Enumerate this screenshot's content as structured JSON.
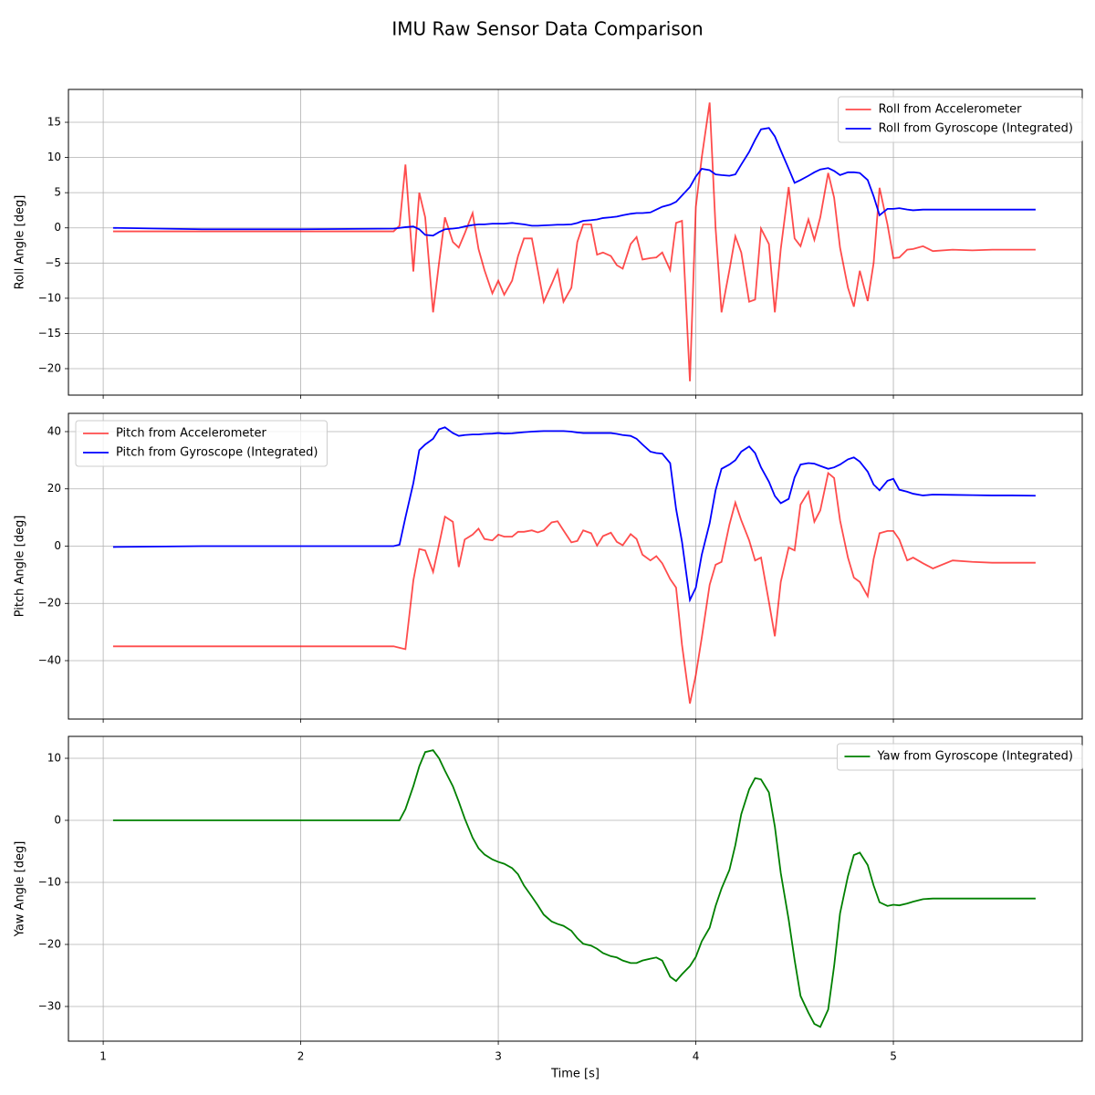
{
  "title": "IMU Raw Sensor Data Comparison",
  "chart_data": [
    {
      "type": "line",
      "ylabel": "Roll Angle [deg]",
      "legend": "upper right",
      "grid": true,
      "ylim": [
        -23.76,
        19.67
      ],
      "yticks": [
        {
          "value": -20,
          "label": "−20"
        },
        {
          "value": -15,
          "label": "−15"
        },
        {
          "value": -10,
          "label": "−10"
        },
        {
          "value": -5,
          "label": "−5"
        },
        0,
        5,
        10,
        15
      ],
      "x": [
        1.05,
        1.5,
        2.0,
        2.47,
        2.5,
        2.53,
        2.57,
        2.6,
        2.63,
        2.67,
        2.7,
        2.73,
        2.77,
        2.8,
        2.83,
        2.87,
        2.9,
        2.93,
        2.97,
        3.0,
        3.03,
        3.07,
        3.1,
        3.13,
        3.17,
        3.2,
        3.23,
        3.27,
        3.3,
        3.33,
        3.37,
        3.4,
        3.43,
        3.47,
        3.5,
        3.53,
        3.57,
        3.6,
        3.63,
        3.67,
        3.7,
        3.73,
        3.77,
        3.8,
        3.83,
        3.87,
        3.9,
        3.93,
        3.97,
        4.0,
        4.03,
        4.07,
        4.1,
        4.13,
        4.17,
        4.2,
        4.23,
        4.27,
        4.3,
        4.33,
        4.37,
        4.4,
        4.43,
        4.47,
        4.5,
        4.53,
        4.57,
        4.6,
        4.63,
        4.67,
        4.7,
        4.73,
        4.77,
        4.8,
        4.83,
        4.87,
        4.9,
        4.93,
        4.97,
        5.0,
        5.03,
        5.07,
        5.1,
        5.15,
        5.2,
        5.3,
        5.4,
        5.5,
        5.6,
        5.72
      ],
      "series": [
        {
          "name": "Roll from Accelerometer",
          "color": "#ff0000",
          "alpha": 0.7,
          "values": [
            -0.5,
            -0.5,
            -0.5,
            -0.5,
            0.3,
            9,
            -6.2,
            5,
            1.5,
            -12,
            -5,
            1.5,
            -2,
            -2.8,
            -0.8,
            2.1,
            -3,
            -6,
            -9.3,
            -7.5,
            -9.5,
            -7.5,
            -4,
            -1.5,
            -1.5,
            -6,
            -10.5,
            -8,
            -6,
            -10.5,
            -8.5,
            -2,
            0.5,
            0.5,
            -3.8,
            -3.5,
            -4,
            -5.3,
            -5.8,
            -2.3,
            -1.3,
            -4.5,
            -4.3,
            -4.2,
            -3.5,
            -6,
            0.7,
            1,
            -21.8,
            3,
            10,
            17.8,
            0,
            -12,
            -6,
            -1.2,
            -3.5,
            -10.5,
            -10.2,
            -0.1,
            -2.3,
            -12,
            -3,
            5.8,
            -1.5,
            -2.6,
            1.2,
            -1.7,
            1.5,
            7.8,
            4.3,
            -2.8,
            -8.5,
            -11.2,
            -6.1,
            -10.4,
            -5,
            5.7,
            0.5,
            -4.3,
            -4.2,
            -3.1,
            -3,
            -2.6,
            -3.3,
            -3.1,
            -3.2,
            -3.1,
            -3.1,
            -3.1
          ]
        },
        {
          "name": "Roll from Gyroscope (Integrated)",
          "color": "#0000ff",
          "alpha": 1,
          "values": [
            0,
            -0.2,
            -0.2,
            -0.1,
            0,
            0.1,
            0.2,
            -0.2,
            -1,
            -1.1,
            -0.6,
            -0.2,
            -0.1,
            0,
            0.2,
            0.4,
            0.5,
            0.5,
            0.6,
            0.6,
            0.6,
            0.7,
            0.6,
            0.5,
            0.3,
            0.3,
            0.35,
            0.4,
            0.45,
            0.45,
            0.5,
            0.7,
            1,
            1.1,
            1.2,
            1.4,
            1.5,
            1.6,
            1.8,
            2,
            2.1,
            2.1,
            2.2,
            2.6,
            3,
            3.3,
            3.7,
            4.6,
            5.8,
            7.3,
            8.4,
            8.2,
            7.6,
            7.5,
            7.4,
            7.6,
            9,
            10.8,
            12.5,
            14,
            14.2,
            13,
            11,
            8.4,
            6.4,
            6.8,
            7.4,
            7.9,
            8.3,
            8.5,
            8.1,
            7.5,
            7.9,
            7.9,
            7.8,
            6.8,
            4.5,
            1.8,
            2.7,
            2.7,
            2.8,
            2.6,
            2.5,
            2.6,
            2.6,
            2.6,
            2.6,
            2.6,
            2.6,
            2.6
          ]
        }
      ]
    },
    {
      "type": "line",
      "ylabel": "Pitch Angle [deg]",
      "legend": "upper left",
      "grid": true,
      "ylim": [
        -60.4,
        46.37
      ],
      "yticks": [
        {
          "value": -40,
          "label": "−40"
        },
        {
          "value": -20,
          "label": "−20"
        },
        0,
        20,
        40
      ],
      "x": [
        1.05,
        1.5,
        2.0,
        2.47,
        2.5,
        2.53,
        2.57,
        2.6,
        2.63,
        2.67,
        2.7,
        2.73,
        2.77,
        2.8,
        2.83,
        2.87,
        2.9,
        2.93,
        2.97,
        3.0,
        3.03,
        3.07,
        3.1,
        3.13,
        3.17,
        3.2,
        3.23,
        3.27,
        3.3,
        3.33,
        3.37,
        3.4,
        3.43,
        3.47,
        3.5,
        3.53,
        3.57,
        3.6,
        3.63,
        3.67,
        3.7,
        3.73,
        3.77,
        3.8,
        3.83,
        3.87,
        3.9,
        3.93,
        3.97,
        4.0,
        4.03,
        4.07,
        4.1,
        4.13,
        4.17,
        4.2,
        4.23,
        4.27,
        4.3,
        4.33,
        4.37,
        4.4,
        4.43,
        4.47,
        4.5,
        4.53,
        4.57,
        4.6,
        4.63,
        4.67,
        4.7,
        4.73,
        4.77,
        4.8,
        4.83,
        4.87,
        4.9,
        4.93,
        4.97,
        5.0,
        5.03,
        5.07,
        5.1,
        5.15,
        5.2,
        5.3,
        5.4,
        5.5,
        5.6,
        5.72
      ],
      "series": [
        {
          "name": "Pitch from Accelerometer",
          "color": "#ff0000",
          "alpha": 0.7,
          "values": [
            -35,
            -35,
            -35,
            -35,
            -35.5,
            -36,
            -12,
            -1,
            -1.5,
            -9,
            0.5,
            10.3,
            8.5,
            -7.3,
            2.3,
            4,
            6.1,
            2.5,
            2,
            4,
            3.3,
            3.3,
            5,
            5,
            5.5,
            4.8,
            5.5,
            8.3,
            8.7,
            5.5,
            1.3,
            1.8,
            5.5,
            4.5,
            0.2,
            3.5,
            4.7,
            1.5,
            0.3,
            4.2,
            2.5,
            -3,
            -5,
            -3.5,
            -6,
            -11.5,
            -14.5,
            -34.5,
            -55,
            -45,
            -32,
            -13.5,
            -6.5,
            -5.5,
            7.5,
            15.2,
            9,
            2,
            -5,
            -4,
            -19.5,
            -31.5,
            -12.5,
            -0.5,
            -1.5,
            14.5,
            19,
            8.5,
            12.5,
            25.5,
            23.8,
            9,
            -4,
            -11,
            -12.5,
            -17.5,
            -4.5,
            4.5,
            5.3,
            5.3,
            2.3,
            -5,
            -4,
            -6,
            -7.8,
            -5,
            -5.5,
            -5.8,
            -5.8,
            -5.8
          ]
        },
        {
          "name": "Pitch from Gyroscope (Integrated)",
          "color": "#0000ff",
          "alpha": 1,
          "values": [
            -0.3,
            0,
            0,
            0,
            0.5,
            10,
            22,
            33.5,
            35.5,
            37.5,
            40.8,
            41.5,
            39.5,
            38.5,
            38.8,
            39,
            39,
            39.2,
            39.3,
            39.5,
            39.3,
            39.4,
            39.6,
            39.8,
            40,
            40.1,
            40.2,
            40.2,
            40.2,
            40.2,
            40,
            39.7,
            39.5,
            39.5,
            39.5,
            39.5,
            39.5,
            39.2,
            38.8,
            38.5,
            37.5,
            35.5,
            33,
            32.5,
            32.3,
            29,
            13,
            1.5,
            -18.8,
            -14.5,
            -3,
            8,
            19.5,
            27,
            28.5,
            30,
            33,
            34.8,
            32.5,
            27.5,
            22.5,
            17.5,
            15,
            16.5,
            24,
            28.5,
            29,
            28.8,
            28,
            27,
            27.5,
            28.5,
            30.3,
            31,
            29.5,
            26,
            21.5,
            19.5,
            22.8,
            23.5,
            19.7,
            19,
            18.3,
            17.7,
            18,
            17.9,
            17.8,
            17.7,
            17.7,
            17.6
          ]
        }
      ]
    },
    {
      "type": "line",
      "ylabel": "Yaw Angle [deg]",
      "xlabel": "Time [s]",
      "legend": "upper right",
      "grid": true,
      "xlim": [
        0.824,
        5.956
      ],
      "xticks": [
        1,
        2,
        3,
        4,
        5
      ],
      "ylim": [
        -35.59,
        13.53
      ],
      "yticks": [
        {
          "value": -30,
          "label": "−30"
        },
        {
          "value": -20,
          "label": "−20"
        },
        {
          "value": -10,
          "label": "−10"
        },
        0,
        10
      ],
      "x": [
        1.05,
        1.5,
        2.0,
        2.47,
        2.5,
        2.53,
        2.57,
        2.6,
        2.63,
        2.67,
        2.7,
        2.73,
        2.77,
        2.8,
        2.83,
        2.87,
        2.9,
        2.93,
        2.97,
        3.0,
        3.03,
        3.07,
        3.1,
        3.13,
        3.17,
        3.2,
        3.23,
        3.27,
        3.3,
        3.33,
        3.37,
        3.4,
        3.43,
        3.47,
        3.5,
        3.53,
        3.57,
        3.6,
        3.63,
        3.67,
        3.7,
        3.73,
        3.77,
        3.8,
        3.83,
        3.87,
        3.9,
        3.93,
        3.97,
        4.0,
        4.03,
        4.07,
        4.1,
        4.13,
        4.17,
        4.2,
        4.23,
        4.27,
        4.3,
        4.33,
        4.37,
        4.4,
        4.43,
        4.47,
        4.5,
        4.53,
        4.57,
        4.6,
        4.63,
        4.67,
        4.7,
        4.73,
        4.77,
        4.8,
        4.83,
        4.87,
        4.9,
        4.93,
        4.97,
        5.0,
        5.03,
        5.07,
        5.1,
        5.15,
        5.2,
        5.3,
        5.4,
        5.5,
        5.6,
        5.72
      ],
      "series": [
        {
          "name": "Yaw from Gyroscope (Integrated)",
          "color": "#008000",
          "alpha": 1,
          "values": [
            0,
            0,
            0,
            0,
            0,
            1.8,
            5.5,
            8.7,
            11,
            11.3,
            10,
            8,
            5.5,
            3,
            0.3,
            -2.8,
            -4.5,
            -5.5,
            -6.3,
            -6.7,
            -7,
            -7.7,
            -8.7,
            -10.5,
            -12.3,
            -13.7,
            -15.2,
            -16.3,
            -16.7,
            -17,
            -17.8,
            -19,
            -19.9,
            -20.2,
            -20.7,
            -21.4,
            -21.9,
            -22.1,
            -22.6,
            -23,
            -23,
            -22.6,
            -22.3,
            -22.1,
            -22.6,
            -25.2,
            -25.9,
            -24.8,
            -23.5,
            -22,
            -19.5,
            -17.3,
            -13.8,
            -11,
            -8,
            -4,
            1,
            5,
            6.8,
            6.6,
            4.5,
            -1,
            -8.5,
            -16,
            -22.5,
            -28.3,
            -31,
            -32.8,
            -33.3,
            -30.5,
            -23.5,
            -15,
            -9,
            -5.6,
            -5.2,
            -7.2,
            -10.5,
            -13.2,
            -13.8,
            -13.6,
            -13.7,
            -13.4,
            -13.1,
            -12.7,
            -12.6,
            -12.6,
            -12.6,
            -12.6,
            -12.6,
            -12.6
          ]
        }
      ]
    }
  ]
}
